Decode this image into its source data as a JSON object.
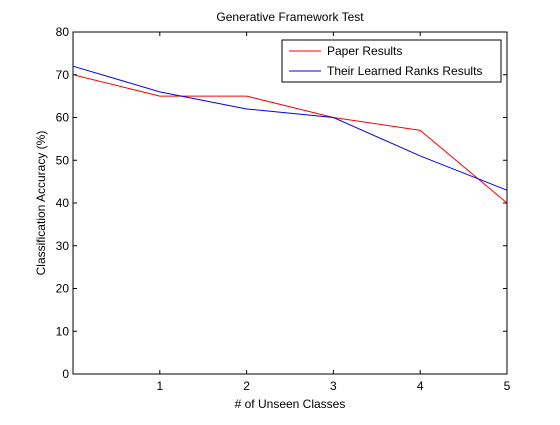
{
  "chart_data": {
    "type": "line",
    "title": "Generative Framework Test",
    "xlabel": "# of Unseen Classes",
    "ylabel": "Classification Accuracy (%)",
    "x": [
      0,
      1,
      2,
      3,
      4,
      5
    ],
    "xlim": [
      0,
      5
    ],
    "ylim": [
      0,
      80
    ],
    "xticks": [
      "1",
      "2",
      "3",
      "4",
      "5"
    ],
    "yticks": [
      "0",
      "10",
      "20",
      "30",
      "40",
      "50",
      "60",
      "70",
      "80"
    ],
    "grid": false,
    "legend_position": "top-right",
    "series": [
      {
        "name": "Paper Results",
        "color": "#ff0000",
        "values": [
          70,
          65,
          65,
          60,
          57,
          40
        ]
      },
      {
        "name": "Their Learned Ranks Results",
        "color": "#0000ff",
        "values": [
          72,
          66,
          62,
          60,
          51,
          43
        ]
      }
    ]
  }
}
